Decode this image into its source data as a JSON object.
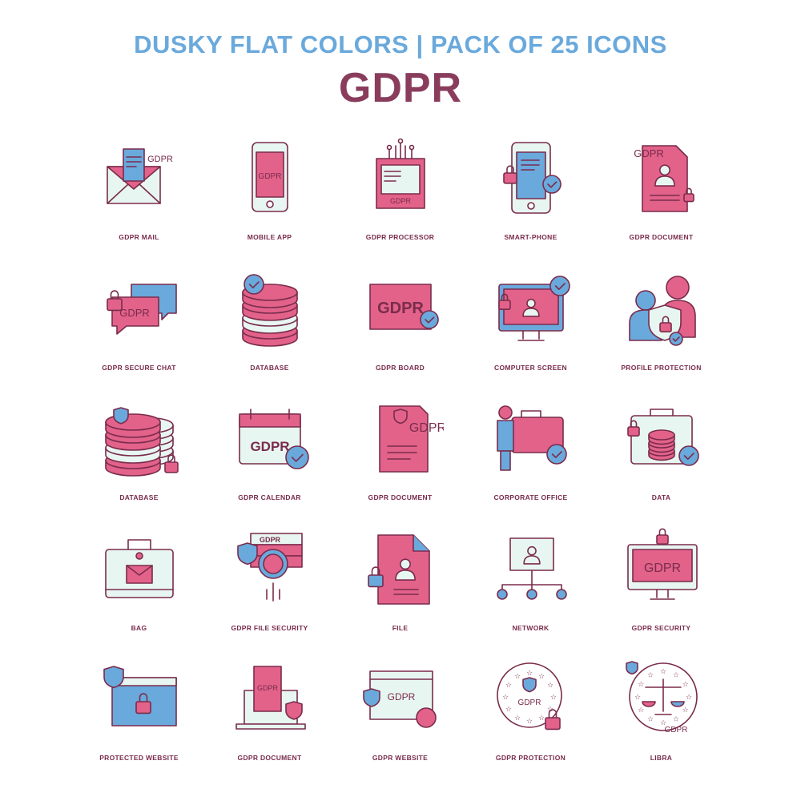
{
  "header": {
    "tagline": "DUSKY FLAT COLORS  |  PACK OF 25 ICONS",
    "title": "GDPR"
  },
  "colors": {
    "pink": "#e2628a",
    "mint": "#e8f6f1",
    "blue": "#6aa9dc",
    "outline": "#7a2c4c",
    "title": "#8a3c5c"
  },
  "icon_text": "GDPR",
  "icons": [
    {
      "label": "GDPR MAIL",
      "icon": "mail-icon"
    },
    {
      "label": "MOBILE APP",
      "icon": "mobile-app-icon"
    },
    {
      "label": "GDPR PROCESSOR",
      "icon": "processor-icon"
    },
    {
      "label": "SMART-PHONE",
      "icon": "smartphone-icon"
    },
    {
      "label": "GDPR DOCUMENT",
      "icon": "document-icon"
    },
    {
      "label": "GDPR SECURE CHAT",
      "icon": "secure-chat-icon"
    },
    {
      "label": "DATABASE",
      "icon": "database-icon"
    },
    {
      "label": "GDPR BOARD",
      "icon": "board-icon"
    },
    {
      "label": "COMPUTER SCREEN",
      "icon": "computer-screen-icon"
    },
    {
      "label": "PROFILE PROTECTION",
      "icon": "profile-protection-icon"
    },
    {
      "label": "DATABASE",
      "icon": "database-lock-icon"
    },
    {
      "label": "GDPR CALENDAR",
      "icon": "calendar-icon"
    },
    {
      "label": "GDPR DOCUMENT",
      "icon": "document-shield-icon"
    },
    {
      "label": "CORPORATE OFFICE",
      "icon": "corporate-office-icon"
    },
    {
      "label": "DATA",
      "icon": "data-briefcase-icon"
    },
    {
      "label": "BAG",
      "icon": "bag-icon"
    },
    {
      "label": "GDPR FILE SECURITY",
      "icon": "file-security-icon"
    },
    {
      "label": "FILE",
      "icon": "file-icon"
    },
    {
      "label": "NETWORK",
      "icon": "network-icon"
    },
    {
      "label": "GDPR SECURITY",
      "icon": "monitor-security-icon"
    },
    {
      "label": "PROTECTED WEBSITE",
      "icon": "protected-website-icon"
    },
    {
      "label": "GDPR DOCUMENT",
      "icon": "laptop-document-icon"
    },
    {
      "label": "GDPR WEBSITE",
      "icon": "website-icon"
    },
    {
      "label": "GDPR PROTECTION",
      "icon": "eu-stars-protection-icon"
    },
    {
      "label": "LIBRA",
      "icon": "libra-scales-icon"
    }
  ]
}
